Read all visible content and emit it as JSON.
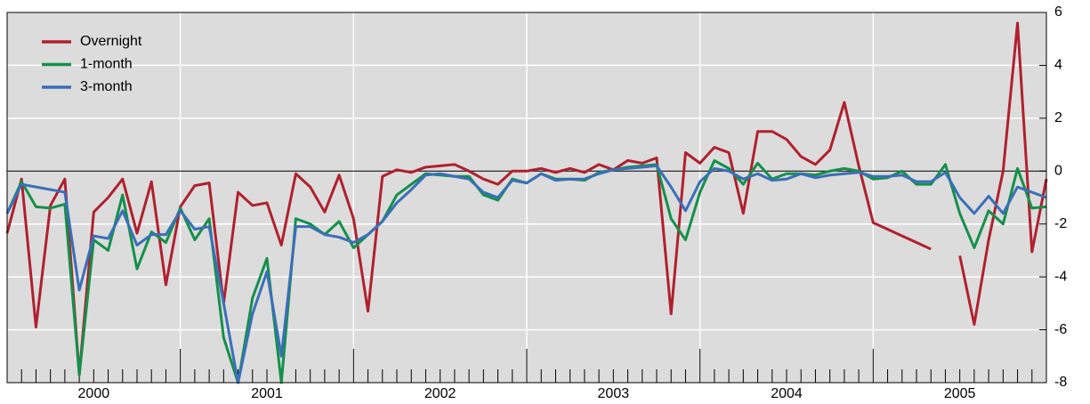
{
  "chart_data": {
    "type": "line",
    "categories": [
      null,
      null,
      null,
      null,
      null,
      null,
      "2000",
      null,
      null,
      null,
      null,
      null,
      null,
      null,
      null,
      null,
      null,
      null,
      "2001",
      null,
      null,
      null,
      null,
      null,
      null,
      null,
      null,
      null,
      null,
      null,
      "2002",
      null,
      null,
      null,
      null,
      null,
      null,
      null,
      null,
      null,
      null,
      null,
      "2003",
      null,
      null,
      null,
      null,
      null,
      null,
      null,
      null,
      null,
      null,
      null,
      "2004",
      null,
      null,
      null,
      null,
      null,
      null,
      null,
      null,
      null,
      null,
      null,
      "2005",
      null,
      null,
      null,
      null,
      null,
      null
    ],
    "series": [
      {
        "name": "Overnight",
        "color": "#b0202e",
        "values": [
          -2.35,
          -0.3,
          -5.9,
          -1.3,
          -0.3,
          -7.7,
          -1.55,
          -1.0,
          -0.3,
          -2.35,
          -0.4,
          -4.3,
          -1.35,
          -0.55,
          -0.45,
          -5.0,
          -0.8,
          -1.3,
          -1.2,
          -2.8,
          -0.1,
          -0.6,
          -1.55,
          -0.15,
          -1.8,
          -5.3,
          -0.2,
          0.05,
          -0.05,
          0.15,
          0.2,
          0.25,
          0.0,
          -0.3,
          -0.5,
          0.0,
          0.0,
          0.1,
          -0.05,
          0.1,
          -0.05,
          0.25,
          0.05,
          0.4,
          0.3,
          0.5,
          -5.4,
          0.7,
          0.3,
          0.9,
          0.7,
          -1.6,
          1.5,
          1.5,
          1.2,
          0.55,
          0.25,
          0.8,
          2.6,
          0.2,
          -1.95,
          -2.2,
          -2.45,
          -2.7,
          -2.95,
          null,
          -3.2,
          -5.8,
          -2.6,
          0.0,
          5.6,
          -3.05,
          -0.3
        ]
      },
      {
        "name": "1-month",
        "color": "#14904a",
        "values": [
          -1.6,
          -0.4,
          -1.35,
          -1.4,
          -1.25,
          -7.7,
          -2.6,
          -3.0,
          -0.9,
          -3.7,
          -2.3,
          -2.7,
          -1.4,
          -2.6,
          -1.8,
          -6.3,
          -8.0,
          -4.8,
          -3.3,
          -8.0,
          -1.8,
          -2.0,
          -2.4,
          -1.9,
          -2.9,
          -2.4,
          -1.9,
          -0.9,
          -0.5,
          -0.1,
          -0.15,
          -0.2,
          -0.2,
          -0.9,
          -1.1,
          -0.3,
          -0.45,
          -0.1,
          -0.3,
          -0.3,
          -0.35,
          -0.05,
          0.05,
          0.15,
          0.2,
          0.25,
          -1.8,
          -2.6,
          -0.8,
          0.4,
          0.1,
          -0.5,
          0.3,
          -0.3,
          -0.1,
          -0.1,
          -0.15,
          0.0,
          0.1,
          0.0,
          -0.3,
          -0.25,
          0.0,
          -0.5,
          -0.5,
          0.25,
          -1.6,
          -2.9,
          -1.5,
          -2.0,
          0.1,
          -1.4,
          -1.35
        ]
      },
      {
        "name": "3-month",
        "color": "#3a6fb8",
        "values": [
          -1.6,
          -0.5,
          -0.6,
          -0.7,
          -0.8,
          -4.5,
          -2.45,
          -2.55,
          -1.5,
          -2.8,
          -2.4,
          -2.4,
          -1.5,
          -2.2,
          -2.1,
          -5.0,
          -8.0,
          -5.4,
          -3.8,
          -7.0,
          -2.1,
          -2.1,
          -2.4,
          -2.5,
          -2.7,
          -2.4,
          -1.9,
          -1.2,
          -0.7,
          -0.15,
          -0.1,
          -0.2,
          -0.3,
          -0.8,
          -1.0,
          -0.35,
          -0.45,
          -0.1,
          -0.35,
          -0.3,
          -0.3,
          -0.1,
          0.05,
          0.1,
          0.15,
          0.2,
          -0.6,
          -1.5,
          -0.4,
          0.1,
          0.0,
          -0.3,
          -0.1,
          -0.35,
          -0.3,
          -0.1,
          -0.25,
          -0.15,
          -0.1,
          -0.05,
          -0.2,
          -0.2,
          -0.15,
          -0.4,
          -0.4,
          -0.05,
          -1.0,
          -1.6,
          -0.95,
          -1.6,
          -0.6,
          -0.8,
          -1.0
        ]
      }
    ],
    "ylim": [
      -8,
      6
    ],
    "yticks": [
      -8,
      -6,
      -4,
      -2,
      0,
      2,
      4,
      6
    ],
    "grid": true,
    "legend": "top-left"
  }
}
